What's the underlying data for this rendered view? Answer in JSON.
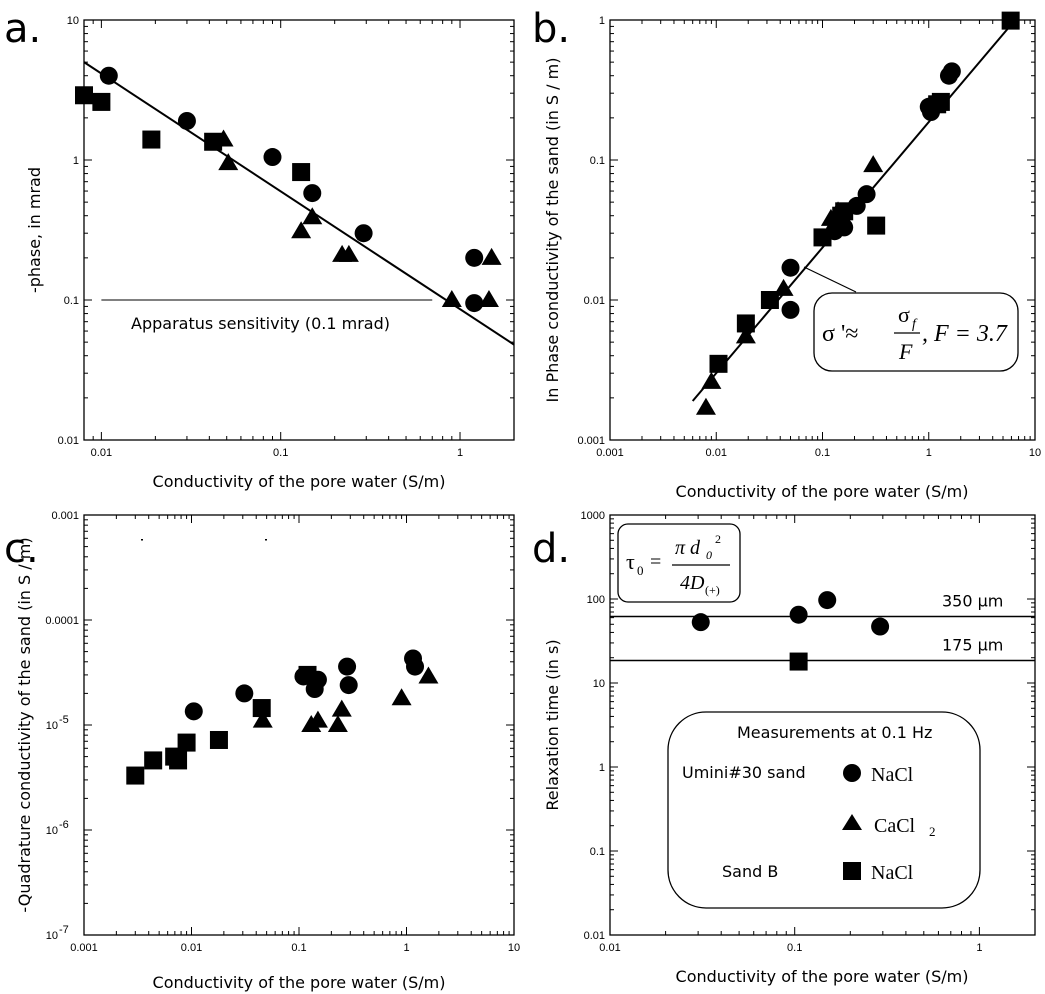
{
  "panel_labels": [
    "a.",
    "b.",
    "c.",
    "d."
  ],
  "chart_data": [
    {
      "id": "a",
      "type": "scatter",
      "xscale": "log",
      "yscale": "log",
      "xlim": [
        0.008,
        2
      ],
      "ylim": [
        0.01,
        10
      ],
      "xlabel": "Conductivity of the pore water (S/m)",
      "ylabel": "-phase, in mrad",
      "xticks": [
        {
          "v": 0.01,
          "t": "0.01"
        },
        {
          "v": 0.1,
          "t": "0.1"
        },
        {
          "v": 1,
          "t": "1"
        }
      ],
      "yticks": [
        {
          "v": 0.01,
          "t": "0.01"
        },
        {
          "v": 0.1,
          "t": "0.1"
        },
        {
          "v": 1,
          "t": "1"
        },
        {
          "v": 10,
          "t": "10"
        }
      ],
      "series": [
        {
          "marker": "circle",
          "points": [
            [
              0.011,
              4.0
            ],
            [
              0.03,
              1.9
            ],
            [
              0.09,
              1.05
            ],
            [
              0.15,
              0.58
            ],
            [
              0.29,
              0.3
            ],
            [
              1.2,
              0.2
            ],
            [
              1.2,
              0.095
            ]
          ]
        },
        {
          "marker": "triangle",
          "points": [
            [
              0.048,
              1.4
            ],
            [
              0.051,
              0.95
            ],
            [
              0.13,
              0.31
            ],
            [
              0.15,
              0.39
            ],
            [
              0.22,
              0.21
            ],
            [
              0.24,
              0.21
            ],
            [
              0.9,
              0.1
            ],
            [
              1.45,
              0.1
            ],
            [
              1.5,
              0.2
            ]
          ]
        },
        {
          "marker": "square",
          "points": [
            [
              0.008,
              2.9
            ],
            [
              0.01,
              2.6
            ],
            [
              0.019,
              1.4
            ],
            [
              0.042,
              1.35
            ],
            [
              0.13,
              0.82
            ]
          ]
        }
      ],
      "fit_line": [
        [
          0.008,
          5.0
        ],
        [
          2,
          0.048
        ]
      ],
      "reference_line": {
        "y": 0.1,
        "x": [
          0.01,
          0.7
        ],
        "label": "Apparatus sensitivity (0.1 mrad)"
      }
    },
    {
      "id": "b",
      "type": "scatter",
      "xscale": "log",
      "yscale": "log",
      "xlim": [
        0.001,
        10
      ],
      "ylim": [
        0.001,
        1
      ],
      "xlabel": "Conductivity of the pore water (S/m)",
      "ylabel": "In Phase conductivity of the sand (in S / m)",
      "xticks": [
        {
          "v": 0.001,
          "t": "0.001"
        },
        {
          "v": 0.01,
          "t": "0.01"
        },
        {
          "v": 0.1,
          "t": "0.1"
        },
        {
          "v": 1,
          "t": "1"
        },
        {
          "v": 10,
          "t": "10"
        }
      ],
      "yticks": [
        {
          "v": 0.001,
          "t": "0.001"
        },
        {
          "v": 0.01,
          "t": "0.01"
        },
        {
          "v": 0.1,
          "t": "0.1"
        },
        {
          "v": 1,
          "t": "1"
        }
      ],
      "series": [
        {
          "marker": "circle",
          "points": [
            [
              0.05,
              0.017
            ],
            [
              0.05,
              0.0085
            ],
            [
              0.13,
              0.031
            ],
            [
              0.16,
              0.033
            ],
            [
              0.21,
              0.047
            ],
            [
              0.26,
              0.057
            ],
            [
              1.0,
              0.24
            ],
            [
              1.05,
              0.22
            ],
            [
              1.55,
              0.4
            ],
            [
              1.65,
              0.43
            ]
          ]
        },
        {
          "marker": "triangle",
          "points": [
            [
              0.008,
              0.0017
            ],
            [
              0.009,
              0.0026
            ],
            [
              0.019,
              0.0055
            ],
            [
              0.043,
              0.012
            ],
            [
              0.12,
              0.038
            ],
            [
              0.14,
              0.043
            ],
            [
              0.3,
              0.092
            ]
          ]
        },
        {
          "marker": "square",
          "points": [
            [
              0.0105,
              0.0035
            ],
            [
              0.019,
              0.0068
            ],
            [
              0.032,
              0.01
            ],
            [
              0.1,
              0.028
            ],
            [
              0.15,
              0.04
            ],
            [
              0.16,
              0.043
            ],
            [
              0.32,
              0.034
            ],
            [
              1.2,
              0.25
            ],
            [
              1.3,
              0.26
            ],
            [
              5.9,
              0.99
            ]
          ]
        }
      ],
      "fit_line": [
        [
          0.006,
          0.0019
        ],
        [
          6.5,
          1.0
        ]
      ],
      "formula": {
        "lhs": "σ '≈",
        "num": "σ",
        "num_sub": "f",
        "den": "F",
        "rest": ", F = 3.7"
      }
    },
    {
      "id": "c",
      "type": "scatter",
      "xscale": "log",
      "yscale": "log",
      "xlim": [
        0.001,
        10
      ],
      "ylim": [
        1e-07,
        0.001
      ],
      "xlabel": "Conductivity of the pore water (S/m)",
      "ylabel": "-Quadrature conductivity of the sand (in S / m)",
      "xticks": [
        {
          "v": 0.001,
          "t": "0.001"
        },
        {
          "v": 0.01,
          "t": "0.01"
        },
        {
          "v": 0.1,
          "t": "0.1"
        },
        {
          "v": 1,
          "t": "1"
        },
        {
          "v": 10,
          "t": "10"
        }
      ],
      "yticks": [
        {
          "v": 1e-07,
          "t": "10",
          "e": "-7"
        },
        {
          "v": 1e-06,
          "t": "10",
          "e": "-6"
        },
        {
          "v": 1e-05,
          "t": "10",
          "e": "-5"
        },
        {
          "v": 0.0001,
          "t": "0.0001"
        },
        {
          "v": 0.001,
          "t": "0.001"
        }
      ],
      "series": [
        {
          "marker": "circle",
          "points": [
            [
              0.0105,
              1.35e-05
            ],
            [
              0.031,
              2e-05
            ],
            [
              0.11,
              2.9e-05
            ],
            [
              0.14,
              2.2e-05
            ],
            [
              0.15,
              2.7e-05
            ],
            [
              0.28,
              3.6e-05
            ],
            [
              0.29,
              2.4e-05
            ],
            [
              1.15,
              4.3e-05
            ],
            [
              1.2,
              3.6e-05
            ]
          ]
        },
        {
          "marker": "triangle",
          "points": [
            [
              0.046,
              1.1e-05
            ],
            [
              0.13,
              1e-05
            ],
            [
              0.15,
              1.1e-05
            ],
            [
              0.23,
              1e-05
            ],
            [
              0.25,
              1.4e-05
            ],
            [
              0.9,
              1.8e-05
            ],
            [
              1.6,
              2.9e-05
            ]
          ]
        },
        {
          "marker": "square",
          "points": [
            [
              0.003,
              3.3e-06
            ],
            [
              0.0044,
              4.6e-06
            ],
            [
              0.0069,
              5e-06
            ],
            [
              0.0075,
              4.6e-06
            ],
            [
              0.009,
              6.8e-06
            ],
            [
              0.018,
              7.2e-06
            ],
            [
              0.045,
              1.45e-05
            ],
            [
              0.12,
              3e-05
            ]
          ]
        }
      ]
    },
    {
      "id": "d",
      "type": "scatter",
      "xscale": "log",
      "yscale": "log",
      "xlim": [
        0.01,
        2
      ],
      "ylim": [
        0.01,
        1000
      ],
      "xlabel": "Conductivity of the pore water (S/m)",
      "ylabel": "Relaxation time (in s)",
      "xticks": [
        {
          "v": 0.01,
          "t": "0.01"
        },
        {
          "v": 0.1,
          "t": "0.1"
        },
        {
          "v": 1,
          "t": "1"
        }
      ],
      "yticks": [
        {
          "v": 0.01,
          "t": "0.01"
        },
        {
          "v": 0.1,
          "t": "0.1"
        },
        {
          "v": 1,
          "t": "1"
        },
        {
          "v": 10,
          "t": "10"
        },
        {
          "v": 100,
          "t": "100"
        },
        {
          "v": 1000,
          "t": "1000"
        }
      ],
      "series": [
        {
          "marker": "circle",
          "points": [
            [
              0.031,
              53
            ],
            [
              0.105,
              65
            ],
            [
              0.15,
              97
            ],
            [
              0.29,
              47
            ]
          ]
        },
        {
          "marker": "square",
          "points": [
            [
              0.105,
              18
            ]
          ]
        }
      ],
      "hlines": [
        {
          "y": 62,
          "label": "350 μm"
        },
        {
          "y": 18.5,
          "label": "175 μm"
        }
      ],
      "formula": {
        "lhs": "τ",
        "lhs_sub": "0",
        "eq": "=",
        "num": "π d",
        "num_sub": "0",
        "num_sup": "2",
        "den": "4D",
        "den_sub": "(+)"
      },
      "legend": {
        "title": "Measurements at 0.1 Hz",
        "groups": [
          {
            "name": "Umini#30 sand",
            "entries": [
              {
                "marker": "circle",
                "label": "NaCl"
              },
              {
                "marker": "triangle",
                "label": "CaCl",
                "sub": "2"
              }
            ]
          },
          {
            "name": "Sand B",
            "entries": [
              {
                "marker": "square",
                "label": "NaCl"
              }
            ]
          }
        ]
      }
    }
  ]
}
